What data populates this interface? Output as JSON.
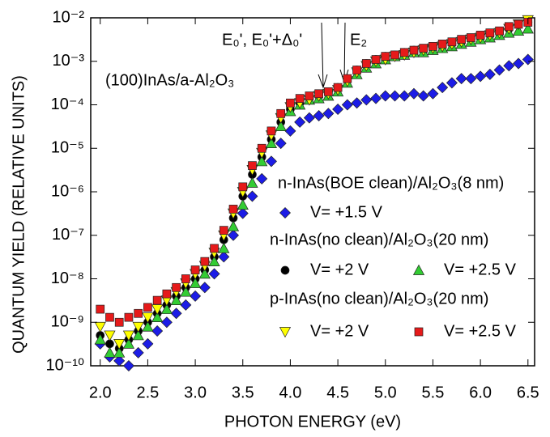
{
  "chart_data": {
    "type": "scatter",
    "y_label": "QUANTUM YIELD (RELATIVE UNITS)",
    "x_label": "PHOTON ENERGY (eV)",
    "annotations": [
      "(100)InAs/a-Al₂O₃",
      "E₀', E₀'+Δ₀'",
      "E₂"
    ],
    "legend_titles": [
      "n-InAs(BOE clean)/Al₂O₃(8 nm)",
      "n-InAs(no clean)/Al₂O₃(20 nm)",
      "p-InAs(no clean)/Al₂O₃(20 nm)"
    ],
    "log_y": true,
    "xlim": [
      1.9,
      6.57
    ],
    "ylim": [
      1e-10,
      0.01
    ],
    "xticks": [
      {
        "value": 2,
        "label": "2.0"
      },
      2.5,
      {
        "value": 3,
        "label": "3.0"
      },
      3.5,
      {
        "value": 4,
        "label": "4.0"
      },
      4.5,
      {
        "value": 5,
        "label": "5.0"
      },
      5.5,
      {
        "value": 6,
        "label": "6.0"
      },
      6.5
    ],
    "yticks": [
      {
        "value": 1e-10,
        "label": "10⁻¹⁰"
      },
      {
        "value": 1e-09,
        "label": "10⁻⁹"
      },
      {
        "value": 1e-08,
        "label": "10⁻⁸"
      },
      {
        "value": 1e-07,
        "label": "10⁻⁷"
      },
      {
        "value": 1e-06,
        "label": "10⁻⁶"
      },
      {
        "value": 1e-05,
        "label": "10⁻⁵"
      },
      {
        "value": 0.0001,
        "label": "10⁻⁴"
      },
      {
        "value": 0.001,
        "label": "10⁻³"
      },
      {
        "value": 0.01,
        "label": "10⁻²"
      }
    ],
    "x": [
      2.0,
      2.1,
      2.2,
      2.3,
      2.4,
      2.5,
      2.6,
      2.7,
      2.8,
      2.9,
      3.0,
      3.1,
      3.2,
      3.3,
      3.4,
      3.5,
      3.6,
      3.7,
      3.8,
      3.9,
      4.0,
      4.1,
      4.2,
      4.3,
      4.4,
      4.5,
      4.6,
      4.7,
      4.8,
      4.9,
      5.0,
      5.1,
      5.2,
      5.3,
      5.4,
      5.5,
      5.6,
      5.7,
      5.8,
      5.9,
      6.0,
      6.1,
      6.2,
      6.3,
      6.4,
      6.5
    ],
    "series": [
      {
        "name": "V= +1.5 V",
        "color": "#1c1ce6",
        "marker": "diamond",
        "values": [
          3.2e-10,
          1.6e-10,
          1.3e-10,
          1e-10,
          2e-10,
          3.2e-10,
          6.3e-10,
          1e-09,
          1.6e-09,
          2.5e-09,
          4e-09,
          6.3e-09,
          1.3e-08,
          3.2e-08,
          1e-07,
          3.2e-07,
          7.9e-07,
          2e-06,
          5e-06,
          1.3e-05,
          2.5e-05,
          4e-05,
          5e-05,
          5.6e-05,
          6.3e-05,
          7.9e-05,
          0.0001,
          0.00011,
          0.00013,
          0.00014,
          0.00016,
          0.00016,
          0.00016,
          0.00018,
          0.00016,
          0.00018,
          0.00025,
          0.00032,
          0.0004,
          0.0004,
          0.00045,
          0.0005,
          0.00063,
          0.00079,
          0.00089,
          0.0011
        ]
      },
      {
        "name": "V= +2 V",
        "color": "#000000",
        "marker": "circle",
        "values": [
          5e-10,
          3.2e-10,
          2.5e-10,
          4e-10,
          6.3e-10,
          1e-09,
          1.6e-09,
          2.5e-09,
          4e-09,
          6.3e-09,
          1e-08,
          1.6e-08,
          3.2e-08,
          7.9e-08,
          2.5e-07,
          7.9e-07,
          2.5e-06,
          6.3e-06,
          1.6e-05,
          4e-05,
          7.9e-05,
          0.00011,
          0.00014,
          0.00016,
          0.0002,
          0.00025,
          0.0004,
          0.00063,
          0.00089,
          0.0011,
          0.0013,
          0.0014,
          0.0016,
          0.0018,
          0.0018,
          0.002,
          0.0022,
          0.0025,
          0.0028,
          0.0032,
          0.0035,
          0.004,
          0.0045,
          0.0056,
          0.0071,
          0.0079
        ]
      },
      {
        "name": "V= +2.5 V",
        "color": "#33cc33",
        "marker": "triangle-up",
        "values": [
          4e-10,
          2e-10,
          2e-10,
          3.2e-10,
          5e-10,
          7.9e-10,
          1.3e-09,
          2e-09,
          3.2e-09,
          5e-09,
          7.9e-09,
          1.3e-08,
          2.5e-08,
          5e-08,
          1.6e-07,
          5e-07,
          1.6e-06,
          5e-06,
          1.3e-05,
          3.2e-05,
          7.1e-05,
          0.0001,
          0.00013,
          0.00014,
          0.00016,
          0.0002,
          0.00032,
          0.0005,
          0.00071,
          0.00089,
          0.0011,
          0.0013,
          0.0014,
          0.0016,
          0.0016,
          0.0018,
          0.002,
          0.0022,
          0.0025,
          0.0028,
          0.0032,
          0.0035,
          0.004,
          0.0045,
          0.005,
          0.0056
        ]
      },
      {
        "name": "V= +2 V",
        "color": "#ffff00",
        "marker": "triangle-down",
        "values": [
          7.9e-10,
          5e-10,
          3.2e-10,
          5e-10,
          7.9e-10,
          1.3e-09,
          2e-09,
          3.2e-09,
          5e-09,
          7.9e-09,
          1.3e-08,
          2e-08,
          4e-08,
          1e-07,
          3.2e-07,
          1e-06,
          3.2e-06,
          7.9e-06,
          2e-05,
          5e-05,
          8.9e-05,
          0.00011,
          0.00013,
          0.00016,
          0.00018,
          0.00022,
          0.00035,
          0.00056,
          0.00079,
          0.001,
          0.0011,
          0.0013,
          0.0014,
          0.0016,
          0.0018,
          0.002,
          0.0022,
          0.0025,
          0.0028,
          0.0032,
          0.0035,
          0.004,
          0.0045,
          0.0056,
          0.0071,
          0.0089
        ]
      },
      {
        "name": "V= +2.5 V",
        "color": "#e61a1a",
        "marker": "square",
        "values": [
          2e-09,
          1.3e-09,
          1e-09,
          1.3e-09,
          1.6e-09,
          2.2e-09,
          3.2e-09,
          4.5e-09,
          6.3e-09,
          1e-08,
          1.6e-08,
          2.5e-08,
          5e-08,
          1.3e-07,
          4e-07,
          1.3e-06,
          4e-06,
          1e-05,
          2.5e-05,
          6.3e-05,
          0.00011,
          0.00014,
          0.00016,
          0.00018,
          0.0002,
          0.00025,
          0.0004,
          0.00063,
          0.00089,
          0.0011,
          0.0013,
          0.0014,
          0.0016,
          0.0018,
          0.002,
          0.0022,
          0.0025,
          0.0028,
          0.0032,
          0.0035,
          0.004,
          0.0045,
          0.005,
          0.0063,
          0.0071,
          0.0079
        ]
      }
    ]
  }
}
